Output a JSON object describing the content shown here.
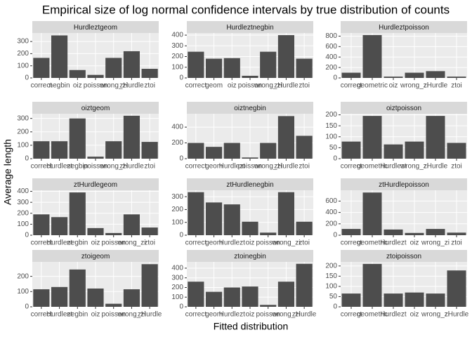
{
  "title": "Empirical size of log normal confidence intervals by true distribution of counts",
  "x_label": "Fitted distribution",
  "y_label": "Average length",
  "chart_data": [
    {
      "type": "bar",
      "title": "Hurdleztgeom",
      "categories": [
        "correct",
        "negbin",
        "oiz",
        "poisson",
        "wrong_zi",
        "zHurdle",
        "ztoi"
      ],
      "values": [
        165,
        350,
        65,
        25,
        165,
        220,
        75
      ],
      "ylim": [
        0,
        370
      ],
      "yticks": [
        0,
        100,
        200,
        300
      ],
      "color": "#4d4d4d",
      "grid": true
    },
    {
      "type": "bar",
      "title": "Hurdleztnegbin",
      "categories": [
        "correct",
        "geom",
        "oiz",
        "poisson",
        "wrong_zi",
        "zHurdle",
        "ztoi"
      ],
      "values": [
        245,
        180,
        185,
        20,
        245,
        400,
        180
      ],
      "ylim": [
        0,
        420
      ],
      "yticks": [
        0,
        100,
        200,
        300,
        400
      ],
      "color": "#4d4d4d",
      "grid": true
    },
    {
      "type": "bar",
      "title": "Hurdleztpoisson",
      "categories": [
        "correct",
        "geometric",
        "oiz",
        "wrong_zi",
        "zHurdle",
        "ztoi"
      ],
      "values": [
        100,
        820,
        25,
        100,
        130,
        25
      ],
      "ylim": [
        0,
        860
      ],
      "yticks": [
        0,
        200,
        400,
        600,
        800
      ],
      "color": "#4d4d4d",
      "grid": true
    },
    {
      "type": "bar",
      "title": "oiztgeom",
      "categories": [
        "correct",
        "Hurdlezt",
        "negbin",
        "poisson",
        "wrong_zi",
        "zHurdle",
        "ztoi"
      ],
      "values": [
        130,
        130,
        300,
        15,
        130,
        320,
        125
      ],
      "ylim": [
        0,
        335
      ],
      "yticks": [
        0,
        100,
        200,
        300
      ],
      "color": "#4d4d4d",
      "grid": true
    },
    {
      "type": "bar",
      "title": "oiztnegbin",
      "categories": [
        "correct",
        "geom",
        "Hurdlezt",
        "poisson",
        "wrong_zi",
        "zHurdle",
        "ztoi"
      ],
      "values": [
        200,
        150,
        200,
        15,
        200,
        540,
        290
      ],
      "ylim": [
        0,
        570
      ],
      "yticks": [
        0,
        200,
        400
      ],
      "color": "#4d4d4d",
      "grid": true
    },
    {
      "type": "bar",
      "title": "oiztpoisson",
      "categories": [
        "correct",
        "geometric",
        "Hurdlezt",
        "wrong_zi",
        "zHurdle",
        "ztoi"
      ],
      "values": [
        78,
        195,
        65,
        78,
        195,
        72
      ],
      "ylim": [
        0,
        205
      ],
      "yticks": [
        0,
        50,
        100,
        150,
        200
      ],
      "color": "#4d4d4d",
      "grid": true
    },
    {
      "type": "bar",
      "title": "ztHurdlegeom",
      "categories": [
        "correct",
        "Hurdlezt",
        "negbin",
        "oiz",
        "poisson",
        "wrong_zi",
        "ztoi"
      ],
      "values": [
        190,
        165,
        390,
        65,
        20,
        190,
        70
      ],
      "ylim": [
        0,
        410
      ],
      "yticks": [
        0,
        100,
        200,
        300,
        400
      ],
      "color": "#4d4d4d",
      "grid": true
    },
    {
      "type": "bar",
      "title": "ztHurdlenegbin",
      "categories": [
        "correct",
        "geom",
        "Hurdlezt",
        "oiz",
        "poisson",
        "wrong_zi",
        "ztoi"
      ],
      "values": [
        335,
        255,
        240,
        105,
        20,
        335,
        105
      ],
      "ylim": [
        0,
        350
      ],
      "yticks": [
        0,
        100,
        200,
        300
      ],
      "color": "#4d4d4d",
      "grid": true
    },
    {
      "type": "bar",
      "title": "ztHurdlepoisson",
      "categories": [
        "correct",
        "geometric",
        "Hurdlezt",
        "oiz",
        "wrong_zi",
        "ztoi"
      ],
      "values": [
        110,
        750,
        100,
        40,
        110,
        45
      ],
      "ylim": [
        0,
        790
      ],
      "yticks": [
        0,
        200,
        400,
        600
      ],
      "color": "#4d4d4d",
      "grid": true
    },
    {
      "type": "bar",
      "title": "ztoigeom",
      "categories": [
        "correct",
        "Hurdlezt",
        "negbin",
        "oiz",
        "poisson",
        "wrong_zi",
        "zHurdle"
      ],
      "values": [
        115,
        130,
        245,
        120,
        20,
        115,
        280
      ],
      "ylim": [
        0,
        295
      ],
      "yticks": [
        0,
        100,
        200
      ],
      "color": "#4d4d4d",
      "grid": true
    },
    {
      "type": "bar",
      "title": "ztoinegbin",
      "categories": [
        "correct",
        "geom",
        "Hurdlezt",
        "oiz",
        "poisson",
        "wrong_zi",
        "zHurdle"
      ],
      "values": [
        260,
        155,
        200,
        210,
        20,
        260,
        445
      ],
      "ylim": [
        0,
        465
      ],
      "yticks": [
        0,
        100,
        200,
        300,
        400
      ],
      "color": "#4d4d4d",
      "grid": true
    },
    {
      "type": "bar",
      "title": "ztoipoisson",
      "categories": [
        "correct",
        "geometric",
        "Hurdlezt",
        "oiz",
        "wrong_zi",
        "zHurdle"
      ],
      "values": [
        65,
        210,
        65,
        70,
        65,
        178
      ],
      "ylim": [
        0,
        220
      ],
      "yticks": [
        0,
        50,
        100,
        150,
        200
      ],
      "color": "#4d4d4d",
      "grid": true
    }
  ]
}
